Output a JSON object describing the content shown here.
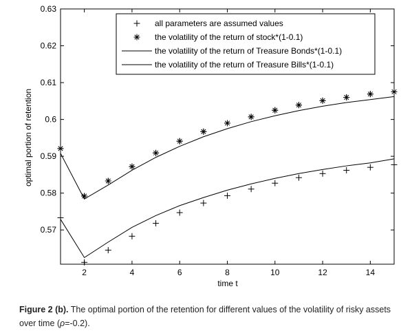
{
  "chart_data": {
    "type": "line",
    "xlabel": "time t",
    "ylabel": "optimal portion of retention",
    "xlim": [
      1,
      15
    ],
    "ylim": [
      0.5607,
      0.63
    ],
    "xticks": [
      2,
      4,
      6,
      8,
      10,
      12,
      14
    ],
    "yticks": [
      0.57,
      0.58,
      0.59,
      0.6,
      0.61,
      0.62,
      0.63
    ],
    "ytick_labels": [
      "0.57",
      "0.58",
      "0.59",
      "0.6",
      "0.61",
      "0.62",
      "0.63"
    ],
    "x": [
      1,
      2,
      3,
      4,
      5,
      6,
      7,
      8,
      9,
      10,
      11,
      12,
      13,
      14,
      15
    ],
    "legend_position": "top-right",
    "series": [
      {
        "name": "all parameters are assumed values",
        "marker": "plus",
        "line": false,
        "values": [
          0.5921,
          0.5792,
          0.5833,
          0.5872,
          0.5909,
          0.5941,
          0.5967,
          0.599,
          0.6007,
          0.6025,
          0.6039,
          0.6051,
          0.606,
          0.6069,
          0.6075
        ]
      },
      {
        "name": "the volatility of the return of stock*(1-0.1)",
        "marker": "star",
        "line": false,
        "values": [
          0.5921,
          0.5792,
          0.5833,
          0.5872,
          0.5909,
          0.5941,
          0.5967,
          0.599,
          0.6007,
          0.6025,
          0.6039,
          0.6051,
          0.606,
          0.6069,
          0.6075
        ]
      },
      {
        "name": "the volatility of the return of Treasure Bonds*(1-0.1)",
        "marker": "none",
        "line": true,
        "values": [
          0.5908,
          0.5784,
          0.5822,
          0.5862,
          0.5897,
          0.5927,
          0.5953,
          0.5975,
          0.5994,
          0.601,
          0.6024,
          0.6036,
          0.6046,
          0.6054,
          0.6062
        ]
      },
      {
        "name": "the volatility of the return of Treasure Bills*(1-0.1)",
        "marker": "none",
        "line": true,
        "values": [
          0.5729,
          0.5625,
          0.5667,
          0.5707,
          0.5739,
          0.5766,
          0.5788,
          0.5808,
          0.5825,
          0.584,
          0.5853,
          0.5864,
          0.5874,
          0.5882,
          0.5893
        ]
      },
      {
        "name": "",
        "marker": "plus",
        "line": false,
        "values": [
          0.5733,
          0.5612,
          0.5645,
          0.5683,
          0.5718,
          0.5747,
          0.5773,
          0.5793,
          0.5811,
          0.5827,
          0.5842,
          0.5853,
          0.5862,
          0.587,
          0.5877
        ]
      }
    ]
  },
  "caption": {
    "label": "Figure 2 (b).",
    "text": " The optimal portion of the retention for different values of the volatility of risky assets over time (",
    "rho": "ρ",
    "tail": "=-0.2)."
  }
}
